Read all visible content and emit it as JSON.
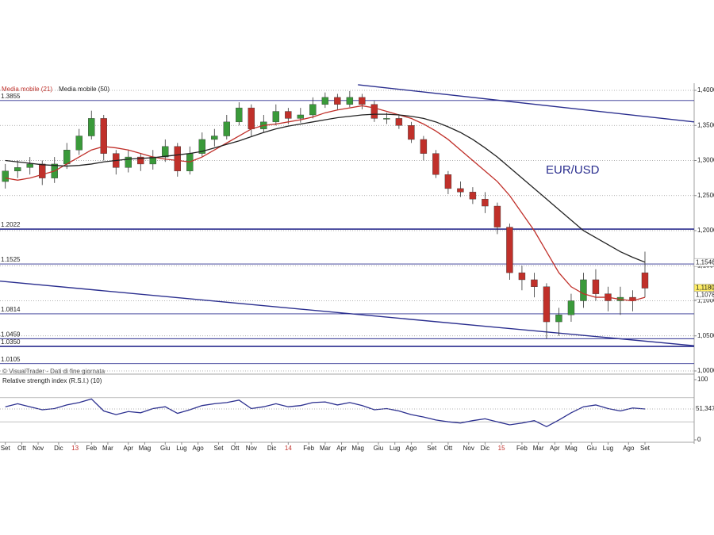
{
  "chart_data": {
    "type": "candlestick",
    "title": "EUR/USD",
    "legend": [
      {
        "name": "Media mobile (21)",
        "color": "#c0302a"
      },
      {
        "name": "Media mobile (50)",
        "color": "#222222"
      }
    ],
    "source": "© VisualTrader - Dati di fine giornata",
    "rsi_title": "Relative strength index (R.S.I.) (10)",
    "x": [
      0,
      3,
      6,
      9,
      12,
      15,
      18,
      21,
      24,
      27,
      30,
      33,
      36,
      39,
      42,
      45,
      48,
      51,
      54,
      57,
      60,
      63,
      66,
      69,
      72,
      75,
      78,
      81,
      84,
      87,
      90,
      93,
      96,
      99,
      102,
      105,
      108,
      111,
      114,
      117,
      120,
      123,
      126,
      129,
      132,
      135,
      138,
      141,
      144,
      147,
      150,
      153,
      156
    ],
    "open": [
      1.27,
      1.285,
      1.29,
      1.295,
      1.275,
      1.295,
      1.315,
      1.335,
      1.36,
      1.31,
      1.29,
      1.305,
      1.295,
      1.305,
      1.32,
      1.285,
      1.31,
      1.33,
      1.335,
      1.355,
      1.375,
      1.345,
      1.355,
      1.37,
      1.36,
      1.365,
      1.38,
      1.39,
      1.38,
      1.39,
      1.38,
      1.36,
      1.36,
      1.35,
      1.33,
      1.31,
      1.28,
      1.26,
      1.255,
      1.245,
      1.235,
      1.205,
      1.14,
      1.13,
      1.12,
      1.07,
      1.08,
      1.1,
      1.13,
      1.11,
      1.1,
      1.105,
      1.14
    ],
    "high": [
      1.295,
      1.3,
      1.305,
      1.3,
      1.305,
      1.325,
      1.345,
      1.371,
      1.365,
      1.315,
      1.315,
      1.31,
      1.315,
      1.33,
      1.325,
      1.32,
      1.34,
      1.345,
      1.365,
      1.383,
      1.38,
      1.365,
      1.38,
      1.375,
      1.375,
      1.39,
      1.397,
      1.395,
      1.399,
      1.395,
      1.385,
      1.368,
      1.366,
      1.355,
      1.335,
      1.315,
      1.285,
      1.27,
      1.262,
      1.255,
      1.24,
      1.21,
      1.15,
      1.14,
      1.125,
      1.09,
      1.11,
      1.14,
      1.145,
      1.12,
      1.12,
      1.115,
      1.17
    ],
    "low": [
      1.26,
      1.275,
      1.28,
      1.265,
      1.268,
      1.288,
      1.308,
      1.33,
      1.3,
      1.28,
      1.283,
      1.285,
      1.287,
      1.298,
      1.277,
      1.28,
      1.305,
      1.32,
      1.33,
      1.35,
      1.335,
      1.34,
      1.35,
      1.352,
      1.354,
      1.36,
      1.375,
      1.372,
      1.376,
      1.373,
      1.355,
      1.352,
      1.345,
      1.325,
      1.3,
      1.275,
      1.252,
      1.248,
      1.238,
      1.225,
      1.195,
      1.13,
      1.115,
      1.105,
      1.046,
      1.05,
      1.07,
      1.09,
      1.1,
      1.085,
      1.08,
      1.085,
      1.105
    ],
    "close": [
      1.285,
      1.29,
      1.295,
      1.275,
      1.295,
      1.315,
      1.335,
      1.36,
      1.31,
      1.29,
      1.305,
      1.295,
      1.305,
      1.32,
      1.285,
      1.31,
      1.33,
      1.335,
      1.355,
      1.375,
      1.345,
      1.355,
      1.37,
      1.36,
      1.365,
      1.38,
      1.39,
      1.38,
      1.39,
      1.38,
      1.36,
      1.36,
      1.35,
      1.33,
      1.31,
      1.28,
      1.26,
      1.255,
      1.245,
      1.235,
      1.205,
      1.14,
      1.13,
      1.12,
      1.07,
      1.08,
      1.1,
      1.13,
      1.11,
      1.1,
      1.105,
      1.1,
      1.118
    ],
    "up_color": "#3a9a3a",
    "down_color": "#c0302a",
    "ma21": [
      1.275,
      1.272,
      1.275,
      1.28,
      1.285,
      1.295,
      1.305,
      1.315,
      1.32,
      1.318,
      1.315,
      1.31,
      1.305,
      1.302,
      1.3,
      1.298,
      1.305,
      1.315,
      1.325,
      1.335,
      1.345,
      1.35,
      1.352,
      1.355,
      1.358,
      1.362,
      1.368,
      1.372,
      1.375,
      1.378,
      1.375,
      1.37,
      1.365,
      1.36,
      1.352,
      1.342,
      1.33,
      1.315,
      1.3,
      1.285,
      1.27,
      1.25,
      1.225,
      1.2,
      1.17,
      1.14,
      1.12,
      1.11,
      1.105,
      1.105,
      1.102,
      1.1,
      1.105
    ],
    "ma50": [
      1.3,
      1.298,
      1.296,
      1.294,
      1.293,
      1.292,
      1.293,
      1.295,
      1.298,
      1.3,
      1.302,
      1.303,
      1.304,
      1.306,
      1.308,
      1.31,
      1.313,
      1.318,
      1.323,
      1.328,
      1.334,
      1.34,
      1.345,
      1.349,
      1.352,
      1.355,
      1.358,
      1.361,
      1.363,
      1.365,
      1.366,
      1.366,
      1.365,
      1.363,
      1.36,
      1.355,
      1.348,
      1.34,
      1.33,
      1.318,
      1.305,
      1.29,
      1.275,
      1.26,
      1.245,
      1.23,
      1.215,
      1.2,
      1.19,
      1.18,
      1.17,
      1.162,
      1.155
    ],
    "rsi": [
      55,
      60,
      55,
      50,
      52,
      58,
      62,
      68,
      48,
      42,
      47,
      45,
      52,
      55,
      44,
      50,
      57,
      60,
      62,
      66,
      52,
      55,
      60,
      55,
      57,
      62,
      63,
      58,
      62,
      57,
      50,
      52,
      48,
      42,
      38,
      33,
      30,
      28,
      32,
      35,
      30,
      25,
      28,
      32,
      22,
      33,
      45,
      55,
      58,
      52,
      48,
      53,
      51.347
    ],
    "rsi_color": "#2b2f8f",
    "xlim": [
      -1.3,
      168
    ],
    "ylim": [
      1.0,
      1.4
    ],
    "yticks": [
      {
        "value": 1.4,
        "label": "1,4000"
      },
      {
        "value": 1.35,
        "label": "1,3500"
      },
      {
        "value": 1.3,
        "label": "1,3000"
      },
      {
        "value": 1.25,
        "label": "1,2500"
      },
      {
        "value": 1.2,
        "label": "1,2000"
      },
      {
        "value": 1.15,
        "label": "1,1500"
      },
      {
        "value": 1.1,
        "label": "1,1000"
      },
      {
        "value": 1.05,
        "label": "1,0500"
      },
      {
        "value": 1.0,
        "label": "1,0000"
      }
    ],
    "rsi_ylim": [
      0,
      100
    ],
    "rsi_yticks": [
      100,
      0
    ],
    "rsi_levels": [
      70,
      30
    ],
    "rsi_tag": {
      "value": 51.347,
      "label": "51,347"
    },
    "levels": [
      {
        "value": 1.3855,
        "label": "1.3855"
      },
      {
        "value": 1.2022,
        "label": "1.2022",
        "thick": true
      },
      {
        "value": 1.1525,
        "label": "1.1525"
      },
      {
        "value": 1.0814,
        "label": "1.0814"
      },
      {
        "value": 1.0459,
        "label": "1.0459"
      },
      {
        "value": 1.035,
        "label": "1.0350",
        "thick": true
      },
      {
        "value": 1.0105,
        "label": "1.0105"
      }
    ],
    "level_color": "#2b2f8f",
    "trendlines": [
      {
        "x": [
          86,
          168
        ],
        "y": [
          1.408,
          1.355
        ]
      },
      {
        "x": [
          -1.3,
          168
        ],
        "y": [
          1.128,
          1.036
        ]
      }
    ],
    "price_tags": [
      {
        "value": 1.1546,
        "label": "1,1546",
        "fill": "#ffffff"
      },
      {
        "value": 1.118,
        "label": "1,1180",
        "fill": "#ffee66"
      },
      {
        "value": 1.1078,
        "label": "1,1078",
        "fill": "#ffffff"
      }
    ],
    "xticks": [
      {
        "value": 0,
        "label": "Set"
      },
      {
        "value": 4,
        "label": "Ott"
      },
      {
        "value": 8,
        "label": "Nov"
      },
      {
        "value": 13,
        "label": "Dic"
      },
      {
        "value": 17,
        "label": "13",
        "color": "#c0302a"
      },
      {
        "value": 21,
        "label": "Feb"
      },
      {
        "value": 25,
        "label": "Mar"
      },
      {
        "value": 30,
        "label": "Apr"
      },
      {
        "value": 34,
        "label": "Mag"
      },
      {
        "value": 39,
        "label": "Giu"
      },
      {
        "value": 43,
        "label": "Lug"
      },
      {
        "value": 47,
        "label": "Ago"
      },
      {
        "value": 52,
        "label": "Set"
      },
      {
        "value": 56,
        "label": "Ott"
      },
      {
        "value": 60,
        "label": "Nov"
      },
      {
        "value": 65,
        "label": "Dic"
      },
      {
        "value": 69,
        "label": "14",
        "color": "#c0302a"
      },
      {
        "value": 74,
        "label": "Feb"
      },
      {
        "value": 78,
        "label": "Mar"
      },
      {
        "value": 82,
        "label": "Apr"
      },
      {
        "value": 86,
        "label": "Mag"
      },
      {
        "value": 91,
        "label": "Giu"
      },
      {
        "value": 95,
        "label": "Lug"
      },
      {
        "value": 99,
        "label": "Ago"
      },
      {
        "value": 104,
        "label": "Set"
      },
      {
        "value": 108,
        "label": "Ott"
      },
      {
        "value": 113,
        "label": "Nov"
      },
      {
        "value": 117,
        "label": "Dic"
      },
      {
        "value": 121,
        "label": "15",
        "color": "#c0302a"
      },
      {
        "value": 126,
        "label": "Feb"
      },
      {
        "value": 130,
        "label": "Mar"
      },
      {
        "value": 134,
        "label": "Apr"
      },
      {
        "value": 138,
        "label": "Mag"
      },
      {
        "value": 143,
        "label": "Giu"
      },
      {
        "value": 147,
        "label": "Lug"
      },
      {
        "value": 152,
        "label": "Ago"
      },
      {
        "value": 156,
        "label": "Set"
      }
    ]
  }
}
